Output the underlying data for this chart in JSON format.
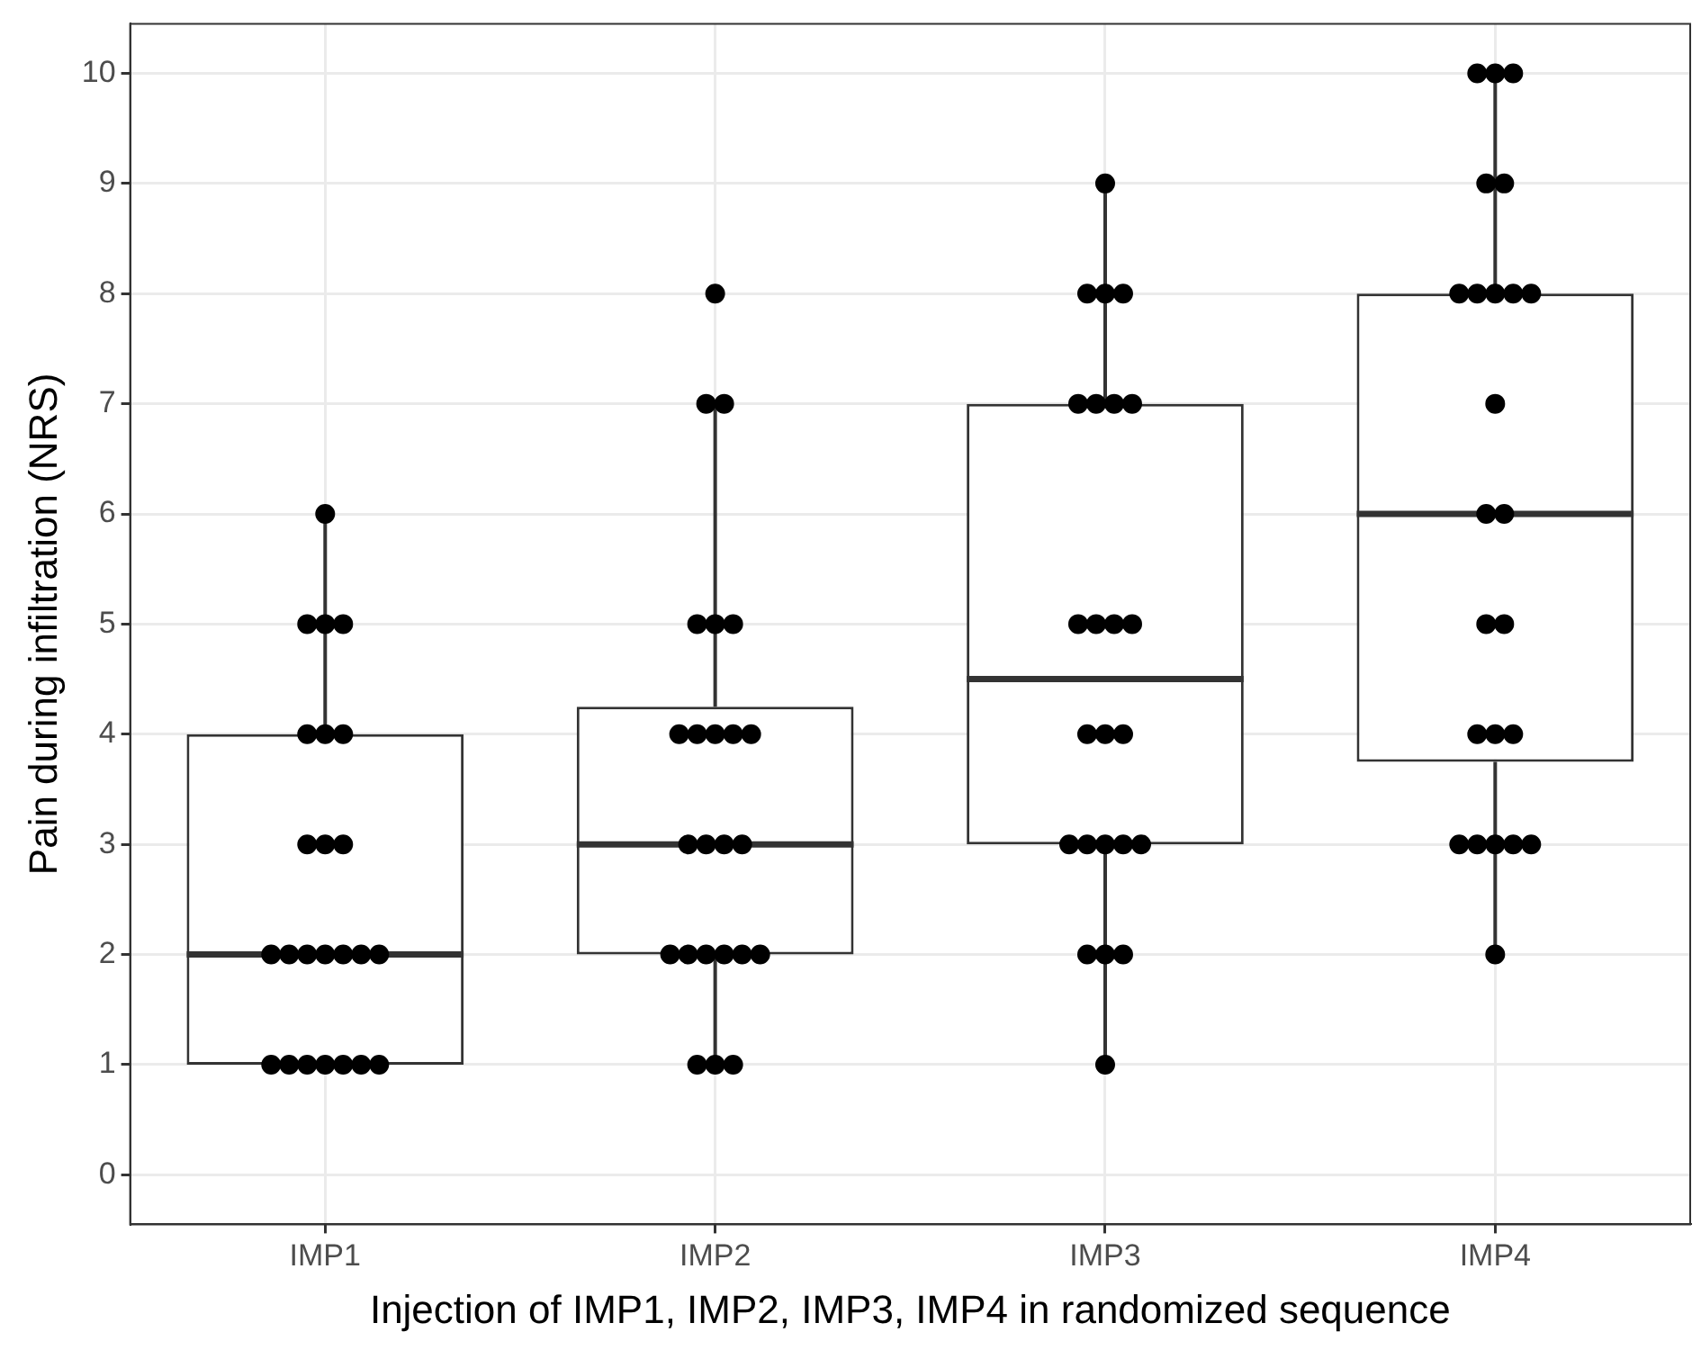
{
  "chart_data": {
    "type": "box",
    "xlabel": "Injection of IMP1, IMP2, IMP3, IMP4 in randomized sequence",
    "ylabel": "Pain during infiltration (NRS)",
    "categories": [
      "IMP1",
      "IMP2",
      "IMP3",
      "IMP4"
    ],
    "boxes": [
      {
        "low": 1,
        "q1": 1,
        "median": 2,
        "q3": 4,
        "high": 6
      },
      {
        "low": 1,
        "q1": 2,
        "median": 3,
        "q3": 4.25,
        "high": 7
      },
      {
        "low": 1,
        "q1": 3,
        "median": 4.5,
        "q3": 7,
        "high": 9
      },
      {
        "low": 2,
        "q1": 3.75,
        "median": 6,
        "q3": 8,
        "high": 10
      }
    ],
    "series": [
      {
        "type": "scatter",
        "color": "#000000",
        "x": [
          "IMP1",
          "IMP1",
          "IMP1",
          "IMP1",
          "IMP1",
          "IMP1",
          "IMP1",
          "IMP1",
          "IMP1",
          "IMP1",
          "IMP1",
          "IMP1",
          "IMP1",
          "IMP1",
          "IMP1",
          "IMP1",
          "IMP1",
          "IMP1",
          "IMP1",
          "IMP1",
          "IMP1",
          "IMP1",
          "IMP1",
          "IMP1",
          "IMP2",
          "IMP2",
          "IMP2",
          "IMP2",
          "IMP2",
          "IMP2",
          "IMP2",
          "IMP2",
          "IMP2",
          "IMP2",
          "IMP2",
          "IMP2",
          "IMP2",
          "IMP2",
          "IMP2",
          "IMP2",
          "IMP2",
          "IMP2",
          "IMP2",
          "IMP2",
          "IMP2",
          "IMP2",
          "IMP2",
          "IMP2",
          "IMP3",
          "IMP3",
          "IMP3",
          "IMP3",
          "IMP3",
          "IMP3",
          "IMP3",
          "IMP3",
          "IMP3",
          "IMP3",
          "IMP3",
          "IMP3",
          "IMP3",
          "IMP3",
          "IMP3",
          "IMP3",
          "IMP3",
          "IMP3",
          "IMP3",
          "IMP3",
          "IMP3",
          "IMP3",
          "IMP3",
          "IMP3",
          "IMP4",
          "IMP4",
          "IMP4",
          "IMP4",
          "IMP4",
          "IMP4",
          "IMP4",
          "IMP4",
          "IMP4",
          "IMP4",
          "IMP4",
          "IMP4",
          "IMP4",
          "IMP4",
          "IMP4",
          "IMP4",
          "IMP4",
          "IMP4",
          "IMP4",
          "IMP4",
          "IMP4",
          "IMP4",
          "IMP4",
          "IMP4"
        ],
        "values": [
          6,
          5,
          5,
          5,
          4,
          4,
          4,
          3,
          3,
          3,
          2,
          2,
          2,
          2,
          2,
          2,
          2,
          1,
          1,
          1,
          1,
          1,
          1,
          1,
          8,
          7,
          7,
          5,
          5,
          5,
          4,
          4,
          4,
          4,
          4,
          3,
          3,
          3,
          3,
          2,
          2,
          2,
          2,
          2,
          2,
          1,
          1,
          1,
          9,
          8,
          8,
          8,
          7,
          7,
          7,
          7,
          5,
          5,
          5,
          5,
          4,
          4,
          4,
          3,
          3,
          3,
          3,
          3,
          2,
          2,
          2,
          1,
          10,
          10,
          10,
          9,
          9,
          8,
          8,
          8,
          8,
          8,
          7,
          6,
          6,
          5,
          5,
          4,
          4,
          4,
          3,
          3,
          3,
          3,
          3,
          2
        ]
      }
    ],
    "ylim": [
      -0.45,
      10.45
    ],
    "yticks": [
      0,
      1,
      2,
      3,
      4,
      5,
      6,
      7,
      8,
      9,
      10
    ],
    "grid": true,
    "marker": "circle",
    "legend": false
  }
}
